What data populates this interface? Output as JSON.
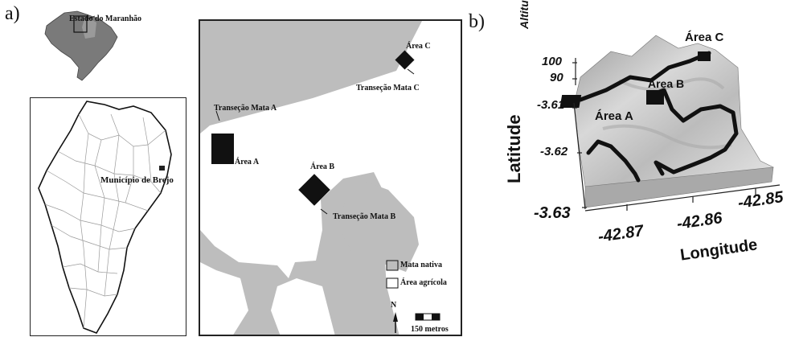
{
  "panel_a": {
    "label": "a)",
    "brazil_inset": {
      "label": "Estado do Maranhão"
    },
    "maranhao_map": {
      "label": "Município de Brejo"
    },
    "study_map": {
      "areas": [
        {
          "id": "A",
          "label": "Área A",
          "transect_label": "Transeção  Mata A"
        },
        {
          "id": "B",
          "label": "Área B",
          "transect_label": "Transeção  Mata B"
        },
        {
          "id": "C",
          "label": "Área C",
          "transect_label": "Transeção  Mata C"
        }
      ],
      "legend": {
        "native": "Mata nativa",
        "agricultural": "Área agrícola"
      },
      "north_label": "N",
      "scale_label": "150 metros",
      "colors": {
        "native": "#bdbdbd",
        "agricultural": "#ffffff",
        "area": "#111111"
      }
    }
  },
  "panel_b": {
    "label": "b)",
    "area_labels": {
      "A": "Área A",
      "B": "Área B",
      "C": "Área C"
    },
    "axes": {
      "altitude": {
        "label": "Altitude (m)",
        "ticks": [
          "100",
          "90"
        ]
      },
      "latitude": {
        "label": "Latitude",
        "ticks": [
          "-3.61",
          "-3.62",
          "-3.63"
        ]
      },
      "longitude": {
        "label": "Longitude",
        "ticks": [
          "-42.87",
          "-42.86",
          "-42.85"
        ]
      }
    }
  }
}
